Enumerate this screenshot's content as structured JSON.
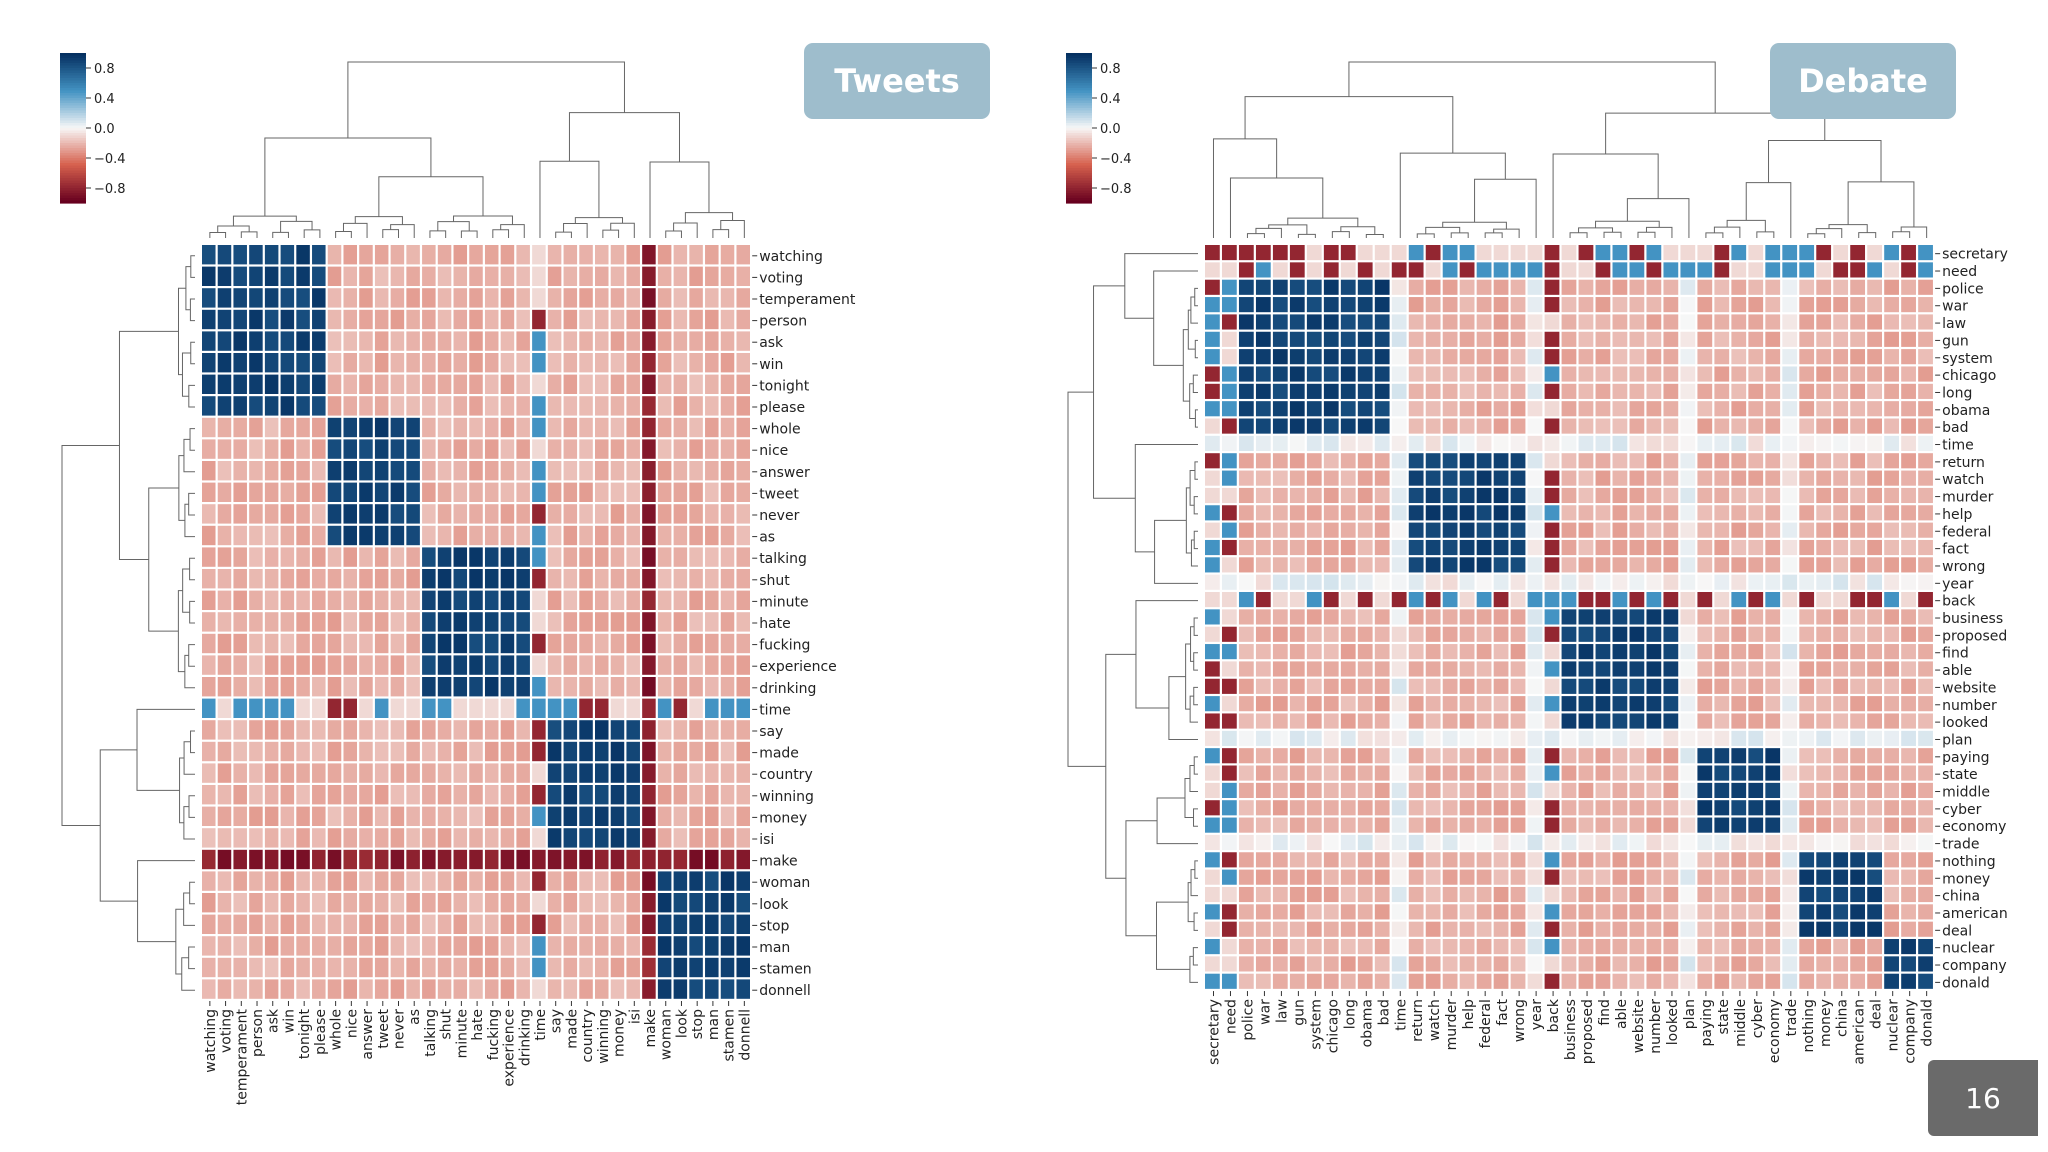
{
  "page_number": "16",
  "colors": {
    "badge": "#9ebdcc",
    "page_box": "#6a6a6a",
    "dendrogram": "#666666"
  },
  "chart_data": [
    {
      "type": "heatmap",
      "title": "Tweets",
      "labels": [
        "watching",
        "voting",
        "temperament",
        "person",
        "ask",
        "win",
        "tonight",
        "please",
        "whole",
        "nice",
        "answer",
        "tweet",
        "never",
        "as",
        "talking",
        "shut",
        "minute",
        "hate",
        "fucking",
        "experience",
        "drinking",
        "time",
        "say",
        "made",
        "country",
        "winning",
        "money",
        "isi",
        "make",
        "woman",
        "look",
        "stop",
        "man",
        "stamen",
        "donnell"
      ],
      "clusters": [
        [
          0,
          7
        ],
        [
          8,
          13
        ],
        [
          14,
          20
        ],
        [
          22,
          27
        ],
        [
          29,
          34
        ]
      ],
      "special": [
        {
          "index": 21,
          "pattern": "mixed"
        },
        {
          "index": 28,
          "pattern": "negative"
        }
      ],
      "colorbar": {
        "ticks": [
          "0.8",
          "0.4",
          "0.0",
          "−0.4",
          "−0.8"
        ],
        "range": [
          -1,
          1
        ],
        "colors": [
          "#67001f",
          "#d6604d",
          "#f7f7f7",
          "#4393c3",
          "#053061"
        ]
      },
      "xlabel": "",
      "ylabel": ""
    },
    {
      "type": "heatmap",
      "title": "Debate",
      "labels": [
        "secretary",
        "need",
        "police",
        "war",
        "law",
        "gun",
        "system",
        "chicago",
        "long",
        "obama",
        "bad",
        "time",
        "return",
        "watch",
        "murder",
        "help",
        "federal",
        "fact",
        "wrong",
        "year",
        "back",
        "business",
        "proposed",
        "find",
        "able",
        "website",
        "number",
        "looked",
        "plan",
        "paying",
        "state",
        "middle",
        "cyber",
        "economy",
        "trade",
        "nothing",
        "money",
        "china",
        "american",
        "deal",
        "nuclear",
        "company",
        "donald"
      ],
      "clusters": [
        [
          2,
          10
        ],
        [
          12,
          18
        ],
        [
          21,
          27
        ],
        [
          29,
          33
        ],
        [
          35,
          39
        ],
        [
          40,
          42
        ]
      ],
      "special": [
        {
          "index": 0,
          "pattern": "mixed"
        },
        {
          "index": 1,
          "pattern": "mixed"
        },
        {
          "index": 11,
          "pattern": "light"
        },
        {
          "index": 19,
          "pattern": "light"
        },
        {
          "index": 20,
          "pattern": "mixed"
        },
        {
          "index": 28,
          "pattern": "light"
        },
        {
          "index": 34,
          "pattern": "light"
        }
      ],
      "colorbar": {
        "ticks": [
          "0.8",
          "0.4",
          "0.0",
          "−0.4",
          "−0.8"
        ],
        "range": [
          -1,
          1
        ],
        "colors": [
          "#67001f",
          "#d6604d",
          "#f7f7f7",
          "#4393c3",
          "#053061"
        ]
      },
      "xlabel": "",
      "ylabel": ""
    }
  ]
}
